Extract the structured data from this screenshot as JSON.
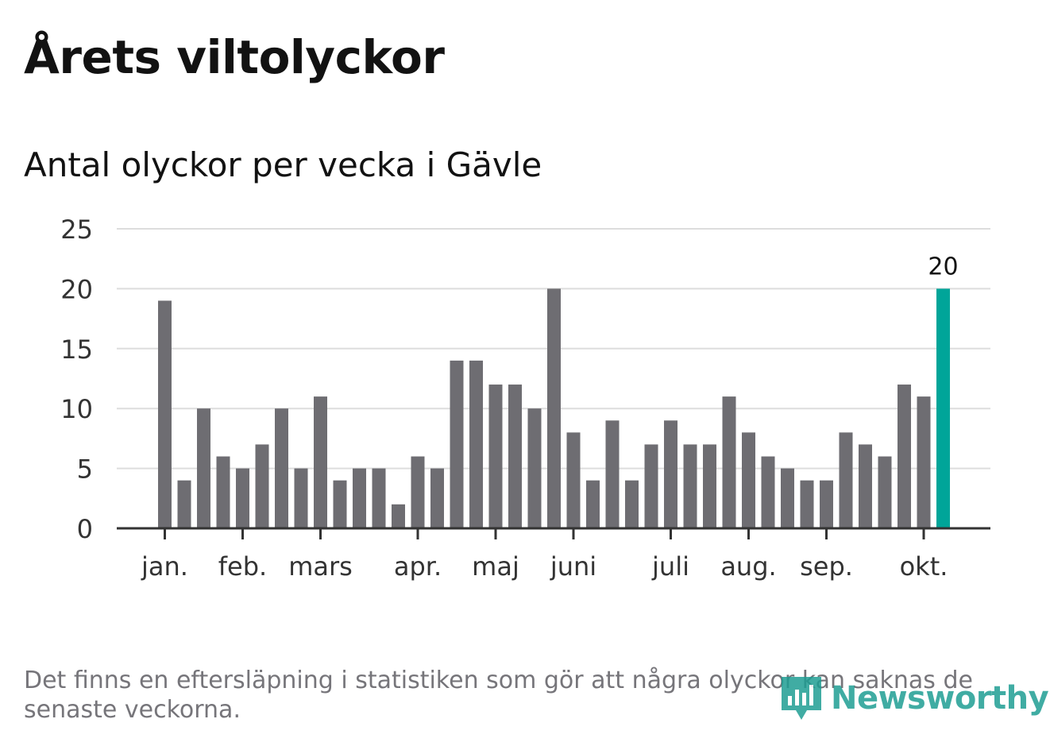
{
  "header": {
    "title": "Årets viltolyckor",
    "subtitle": "Antal olyckor per vecka i Gävle"
  },
  "footer": {
    "note": "Det finns en eftersläpning i statistiken som gör att några olyckor kan saknas de senaste veckorna.",
    "logo_text": "Newsworthy"
  },
  "colors": {
    "bar": "#6e6d72",
    "highlight": "#00a599",
    "grid": "#dddddd",
    "axis": "#333333",
    "logo": "#1f9e93"
  },
  "chart_data": {
    "type": "bar",
    "title": "Årets viltolyckor",
    "subtitle": "Antal olyckor per vecka i Gävle",
    "xlabel": "",
    "ylabel": "",
    "ylim": [
      0,
      25
    ],
    "yticks": [
      0,
      5,
      10,
      15,
      20,
      25
    ],
    "grid": true,
    "values": [
      19,
      4,
      10,
      6,
      5,
      7,
      10,
      5,
      11,
      4,
      5,
      5,
      2,
      6,
      5,
      14,
      14,
      12,
      12,
      10,
      20,
      8,
      4,
      9,
      4,
      7,
      9,
      7,
      7,
      11,
      8,
      6,
      5,
      4,
      4,
      8,
      7,
      6,
      12,
      11,
      20
    ],
    "highlight_last": true,
    "last_value_label": "20",
    "month_labels": [
      {
        "label": "jan.",
        "bar_index": 0
      },
      {
        "label": "feb.",
        "bar_index": 4
      },
      {
        "label": "mars",
        "bar_index": 8
      },
      {
        "label": "apr.",
        "bar_index": 13
      },
      {
        "label": "maj",
        "bar_index": 17
      },
      {
        "label": "juni",
        "bar_index": 21
      },
      {
        "label": "juli",
        "bar_index": 26
      },
      {
        "label": "aug.",
        "bar_index": 30
      },
      {
        "label": "sep.",
        "bar_index": 34
      },
      {
        "label": "okt.",
        "bar_index": 39
      }
    ]
  }
}
